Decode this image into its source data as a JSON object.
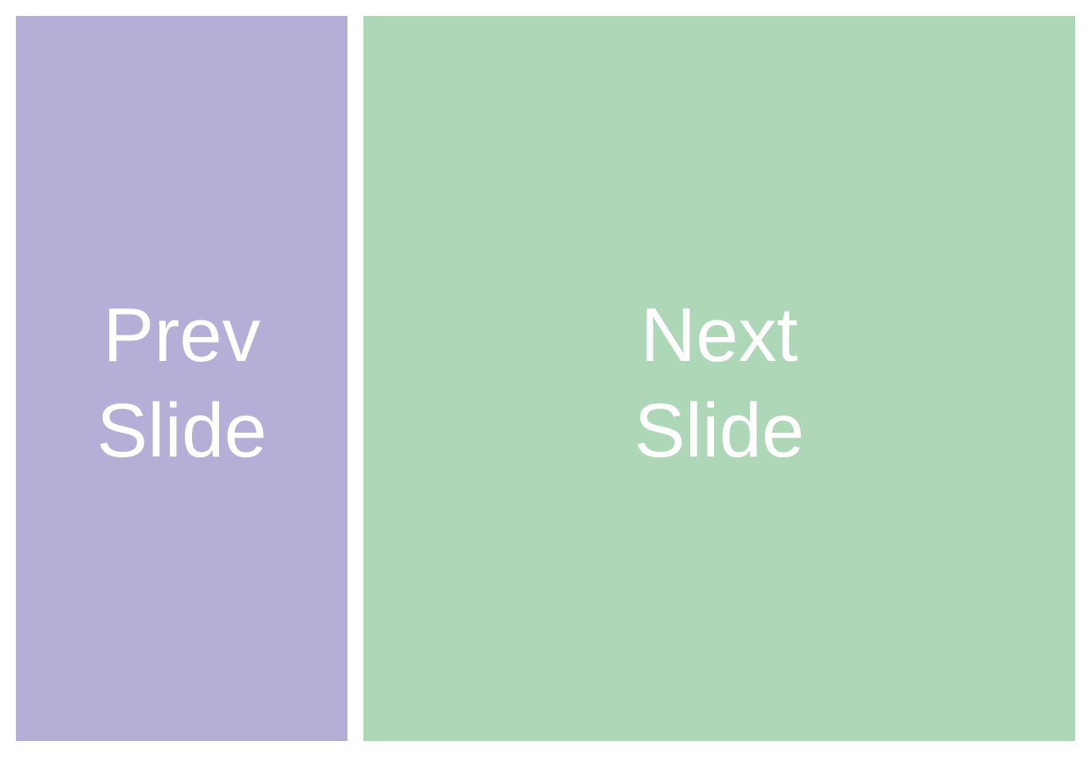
{
  "slides": {
    "prev": {
      "label_line1": "Prev",
      "label_line2": "Slide",
      "color": "#b5aed7"
    },
    "next": {
      "label_line1": "Next",
      "label_line2": "Slide",
      "color": "#aed7b8"
    }
  },
  "text_color": "#ffffff"
}
